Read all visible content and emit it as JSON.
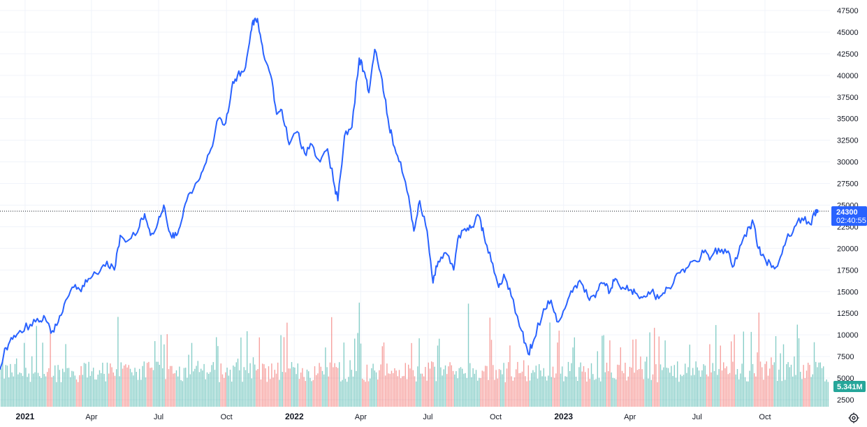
{
  "chart_data": {
    "type": "line",
    "title": "",
    "xlabel": "",
    "ylabel": "",
    "x_range": [
      "2020-11-28",
      "2023-12-30"
    ],
    "ylim": [
      1500,
      48000
    ],
    "y_ticks": [
      2500,
      5000,
      7500,
      10000,
      12500,
      15000,
      17500,
      20000,
      22500,
      25000,
      27500,
      30000,
      32500,
      35000,
      37500,
      40000,
      42500,
      45000,
      47500
    ],
    "x_ticks": [
      {
        "date": "2021-01-01",
        "label": "2021",
        "major": true
      },
      {
        "date": "2021-04-01",
        "label": "Apr",
        "major": false
      },
      {
        "date": "2021-07-01",
        "label": "Jul",
        "major": false
      },
      {
        "date": "2021-10-01",
        "label": "Oct",
        "major": false
      },
      {
        "date": "2022-01-01",
        "label": "2022",
        "major": true
      },
      {
        "date": "2022-04-01",
        "label": "Apr",
        "major": false
      },
      {
        "date": "2022-07-01",
        "label": "Jul",
        "major": false
      },
      {
        "date": "2022-10-01",
        "label": "Oct",
        "major": false
      },
      {
        "date": "2023-01-01",
        "label": "2023",
        "major": true
      },
      {
        "date": "2023-04-01",
        "label": "Apr",
        "major": false
      },
      {
        "date": "2023-07-01",
        "label": "Jul",
        "major": false
      },
      {
        "date": "2023-10-01",
        "label": "Oct",
        "major": false
      }
    ],
    "grid": true,
    "series": [
      {
        "values": [
          [
            "2020-11-28",
            6000
          ],
          [
            "2020-12-06",
            8500
          ],
          [
            "2020-12-15",
            9500
          ],
          [
            "2020-12-25",
            10500
          ],
          [
            "2021-01-08",
            11200
          ],
          [
            "2021-01-20",
            11500
          ],
          [
            "2021-01-28",
            12000
          ],
          [
            "2021-02-05",
            10200
          ],
          [
            "2021-02-15",
            11500
          ],
          [
            "2021-02-25",
            14000
          ],
          [
            "2021-03-08",
            15500
          ],
          [
            "2021-03-18",
            15000
          ],
          [
            "2021-03-28",
            16500
          ],
          [
            "2021-04-10",
            17000
          ],
          [
            "2021-04-22",
            18500
          ],
          [
            "2021-05-02",
            17500
          ],
          [
            "2021-05-10",
            21500
          ],
          [
            "2021-05-22",
            21000
          ],
          [
            "2021-06-05",
            22500
          ],
          [
            "2021-06-12",
            24000
          ],
          [
            "2021-06-20",
            21500
          ],
          [
            "2021-06-30",
            23000
          ],
          [
            "2021-07-08",
            25000
          ],
          [
            "2021-07-15",
            22000
          ],
          [
            "2021-07-22",
            21200
          ],
          [
            "2021-07-30",
            22500
          ],
          [
            "2021-08-08",
            25500
          ],
          [
            "2021-08-20",
            27500
          ],
          [
            "2021-08-30",
            29000
          ],
          [
            "2021-09-10",
            31500
          ],
          [
            "2021-09-20",
            35000
          ],
          [
            "2021-09-30",
            34500
          ],
          [
            "2021-10-08",
            38500
          ],
          [
            "2021-10-16",
            40000
          ],
          [
            "2021-10-25",
            40500
          ],
          [
            "2021-11-03",
            45000
          ],
          [
            "2021-11-08",
            46500
          ],
          [
            "2021-11-13",
            46000
          ],
          [
            "2021-11-20",
            42500
          ],
          [
            "2021-11-30",
            40000
          ],
          [
            "2021-12-08",
            35500
          ],
          [
            "2021-12-15",
            36000
          ],
          [
            "2021-12-25",
            32000
          ],
          [
            "2022-01-05",
            33500
          ],
          [
            "2022-01-15",
            31000
          ],
          [
            "2022-01-25",
            32000
          ],
          [
            "2022-02-05",
            30000
          ],
          [
            "2022-02-15",
            31500
          ],
          [
            "2022-02-25",
            27000
          ],
          [
            "2022-03-01",
            25500
          ],
          [
            "2022-03-10",
            33000
          ],
          [
            "2022-03-20",
            34000
          ],
          [
            "2022-03-30",
            42000
          ],
          [
            "2022-04-05",
            40500
          ],
          [
            "2022-04-12",
            38000
          ],
          [
            "2022-04-20",
            43000
          ],
          [
            "2022-04-30",
            39500
          ],
          [
            "2022-05-08",
            35000
          ],
          [
            "2022-05-15",
            32000
          ],
          [
            "2022-05-25",
            30000
          ],
          [
            "2022-06-05",
            26000
          ],
          [
            "2022-06-12",
            22000
          ],
          [
            "2022-06-20",
            25500
          ],
          [
            "2022-06-30",
            22000
          ],
          [
            "2022-07-08",
            16000
          ],
          [
            "2022-07-15",
            18500
          ],
          [
            "2022-07-25",
            19500
          ],
          [
            "2022-08-05",
            17500
          ],
          [
            "2022-08-12",
            21500
          ],
          [
            "2022-08-22",
            22000
          ],
          [
            "2022-08-30",
            22500
          ],
          [
            "2022-09-08",
            23800
          ],
          [
            "2022-09-15",
            21500
          ],
          [
            "2022-09-25",
            18500
          ],
          [
            "2022-10-05",
            15500
          ],
          [
            "2022-10-12",
            17000
          ],
          [
            "2022-10-22",
            14500
          ],
          [
            "2022-11-05",
            10500
          ],
          [
            "2022-11-14",
            7800
          ],
          [
            "2022-11-22",
            9500
          ],
          [
            "2022-12-05",
            13000
          ],
          [
            "2022-12-15",
            14000
          ],
          [
            "2022-12-25",
            11500
          ],
          [
            "2023-01-05",
            13500
          ],
          [
            "2023-01-15",
            15500
          ],
          [
            "2023-01-25",
            16000
          ],
          [
            "2023-02-05",
            14000
          ],
          [
            "2023-02-15",
            15000
          ],
          [
            "2023-02-25",
            16000
          ],
          [
            "2023-03-05",
            15000
          ],
          [
            "2023-03-12",
            16500
          ],
          [
            "2023-03-22",
            15500
          ],
          [
            "2023-04-01",
            15200
          ],
          [
            "2023-04-10",
            14800
          ],
          [
            "2023-04-20",
            14500
          ],
          [
            "2023-04-30",
            15000
          ],
          [
            "2023-05-10",
            14200
          ],
          [
            "2023-05-20",
            15500
          ],
          [
            "2023-05-30",
            16000
          ],
          [
            "2023-06-10",
            17500
          ],
          [
            "2023-06-20",
            18000
          ],
          [
            "2023-06-30",
            18500
          ],
          [
            "2023-07-10",
            19500
          ],
          [
            "2023-07-20",
            19000
          ],
          [
            "2023-07-30",
            20000
          ],
          [
            "2023-08-10",
            19500
          ],
          [
            "2023-08-20",
            18000
          ],
          [
            "2023-08-30",
            20500
          ],
          [
            "2023-09-10",
            22500
          ],
          [
            "2023-09-15",
            23000
          ],
          [
            "2023-09-22",
            20000
          ],
          [
            "2023-09-30",
            19000
          ],
          [
            "2023-10-10",
            17800
          ],
          [
            "2023-10-20",
            18500
          ],
          [
            "2023-10-30",
            21000
          ],
          [
            "2023-11-10",
            22500
          ],
          [
            "2023-11-20",
            23500
          ],
          [
            "2023-12-01",
            22800
          ],
          [
            "2023-12-10",
            24300
          ]
        ]
      }
    ],
    "volume_note": "volume histogram along the bottom, in teal and salmon",
    "last_price": {
      "value": 24300,
      "label": "24300",
      "timer": "02:40:55"
    },
    "volume_last": {
      "label": "5.341M"
    },
    "colors": {
      "line": "#2962ff",
      "price_badge": "#2962ff",
      "volume_up": "#26a69a",
      "volume_down": "#ef5350",
      "volume_badge": "#26a69a",
      "grid": "#f0f3fa",
      "axis_text": "#131722",
      "crosshair": "#131722"
    }
  },
  "settings": {
    "icon": "gear-icon"
  }
}
